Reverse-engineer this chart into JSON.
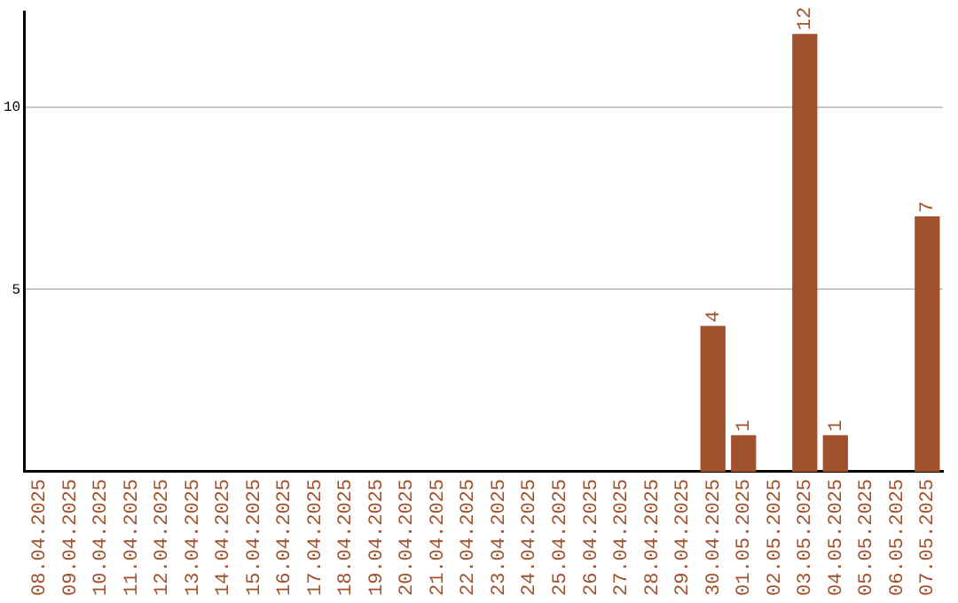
{
  "chart_data": {
    "type": "bar",
    "categories": [
      "08.04.2025",
      "09.04.2025",
      "10.04.2025",
      "11.04.2025",
      "12.04.2025",
      "13.04.2025",
      "14.04.2025",
      "15.04.2025",
      "16.04.2025",
      "17.04.2025",
      "18.04.2025",
      "19.04.2025",
      "20.04.2025",
      "21.04.2025",
      "22.04.2025",
      "23.04.2025",
      "24.04.2025",
      "25.04.2025",
      "26.04.2025",
      "27.04.2025",
      "28.04.2025",
      "29.04.2025",
      "30.04.2025",
      "01.05.2025",
      "02.05.2025",
      "03.05.2025",
      "04.05.2025",
      "05.05.2025",
      "06.05.2025",
      "07.05.2025"
    ],
    "values": [
      0,
      0,
      0,
      0,
      0,
      0,
      0,
      0,
      0,
      0,
      0,
      0,
      0,
      0,
      0,
      0,
      0,
      0,
      0,
      0,
      0,
      0,
      4,
      1,
      0,
      12,
      1,
      0,
      0,
      7
    ],
    "value_labels": [
      null,
      null,
      null,
      null,
      null,
      null,
      null,
      null,
      null,
      null,
      null,
      null,
      null,
      null,
      null,
      null,
      null,
      null,
      null,
      null,
      null,
      null,
      "4",
      "1",
      null,
      "12",
      "1",
      null,
      null,
      "7"
    ],
    "color": "#a0522d",
    "ylim": [
      0,
      12.6
    ],
    "yticks": [
      5,
      10
    ],
    "grid": "y",
    "legend": false
  }
}
